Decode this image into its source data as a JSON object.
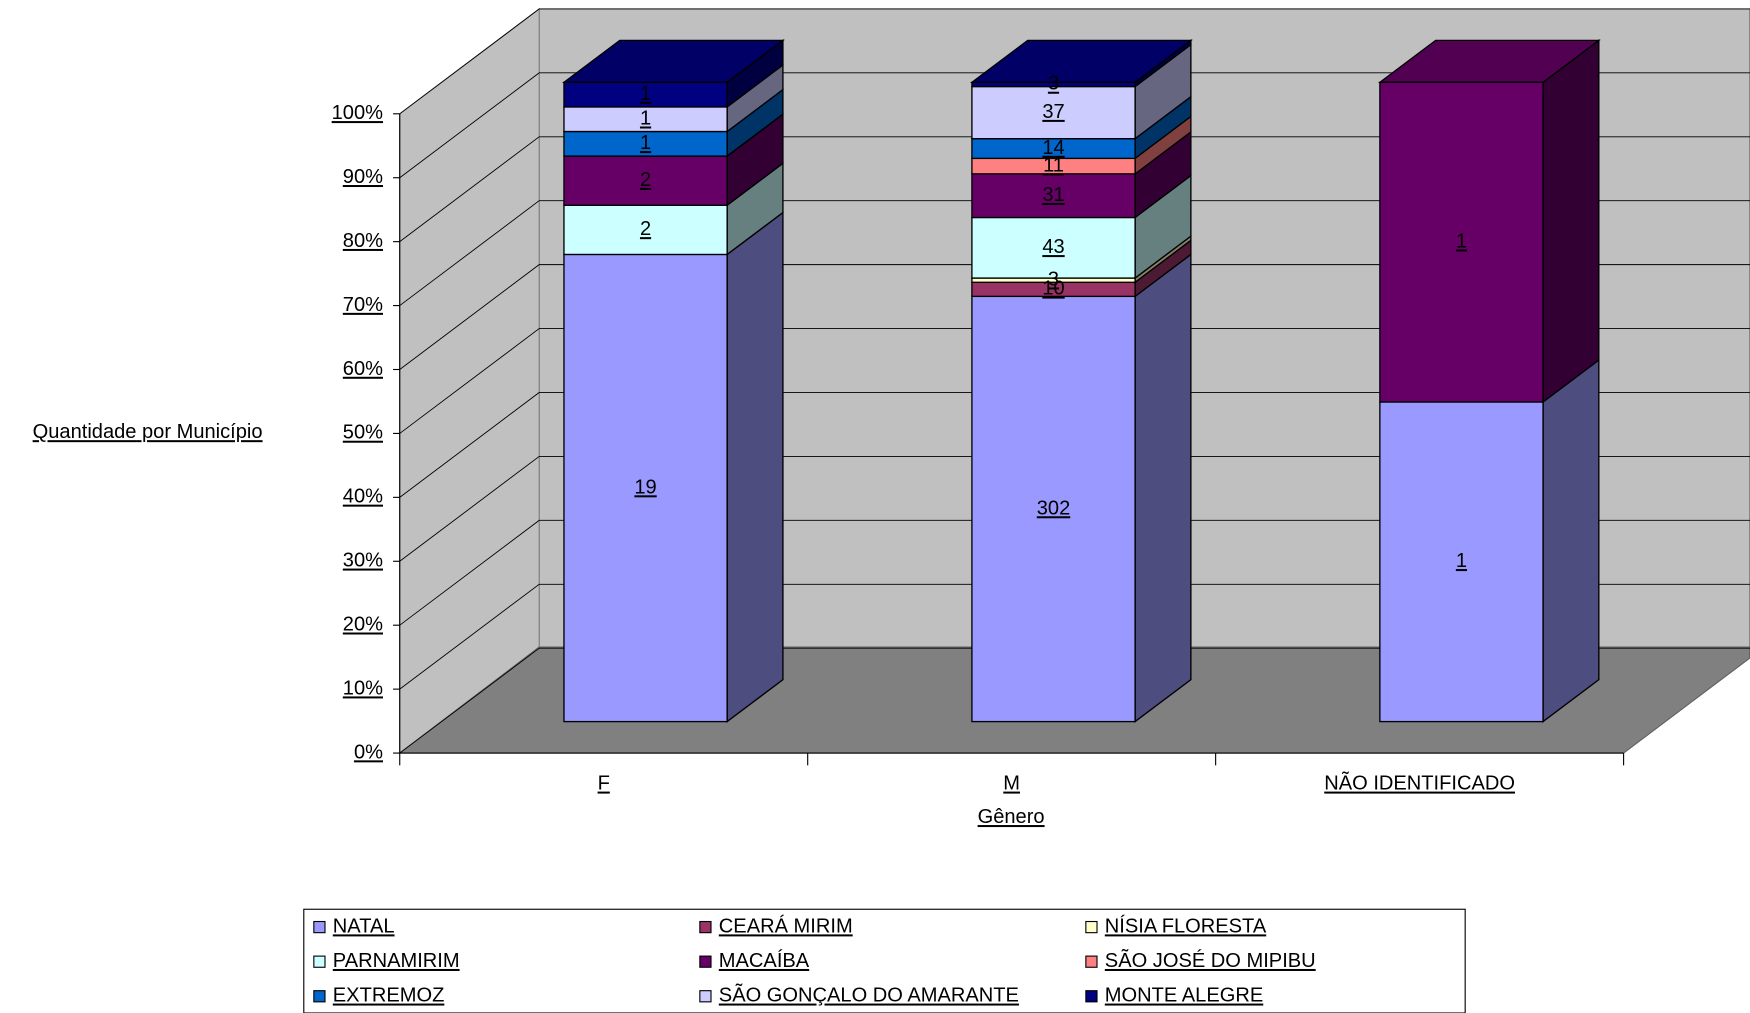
{
  "chart_data": {
    "type": "bar",
    "stacking": "percent",
    "view": "3d",
    "y_label": "Quantidade por Município",
    "x_label": "Gênero",
    "categories": [
      "F",
      "M",
      "NÃO IDENTIFICADO"
    ],
    "series": [
      {
        "name": "NATAL",
        "color": "#9999ff",
        "values": [
          19,
          302,
          1
        ]
      },
      {
        "name": "CEARÁ MIRIM",
        "color": "#993366",
        "values": [
          null,
          10,
          null
        ]
      },
      {
        "name": "NÍSIA FLORESTA",
        "color": "#ffffcc",
        "values": [
          null,
          3,
          null
        ]
      },
      {
        "name": "PARNAMIRIM",
        "color": "#ccffff",
        "values": [
          2,
          43,
          null
        ]
      },
      {
        "name": "MACAÍBA",
        "color": "#660066",
        "values": [
          2,
          31,
          1
        ]
      },
      {
        "name": "SÃO JOSÉ DO MIPIBU",
        "color": "#ff8080",
        "values": [
          null,
          11,
          null
        ]
      },
      {
        "name": "EXTREMOZ",
        "color": "#0066cc",
        "values": [
          1,
          14,
          null
        ]
      },
      {
        "name": "SÃO GONÇALO DO AMARANTE",
        "color": "#ccccff",
        "values": [
          1,
          37,
          null
        ]
      },
      {
        "name": "MONTE ALEGRE",
        "color": "#000080",
        "values": [
          1,
          3,
          null
        ]
      }
    ],
    "ylim": [
      0,
      100
    ],
    "yticks": [
      {
        "value": 0,
        "label": "0%"
      },
      {
        "value": 10,
        "label": "10%"
      },
      {
        "value": 20,
        "label": "20%"
      },
      {
        "value": 30,
        "label": "30%"
      },
      {
        "value": 40,
        "label": "40%"
      },
      {
        "value": 50,
        "label": "50%"
      },
      {
        "value": 60,
        "label": "60%"
      },
      {
        "value": 70,
        "label": "70%"
      },
      {
        "value": 80,
        "label": "80%"
      },
      {
        "value": 90,
        "label": "90%"
      },
      {
        "value": 100,
        "label": "100%"
      }
    ],
    "grid": true,
    "legend": "bottom"
  }
}
